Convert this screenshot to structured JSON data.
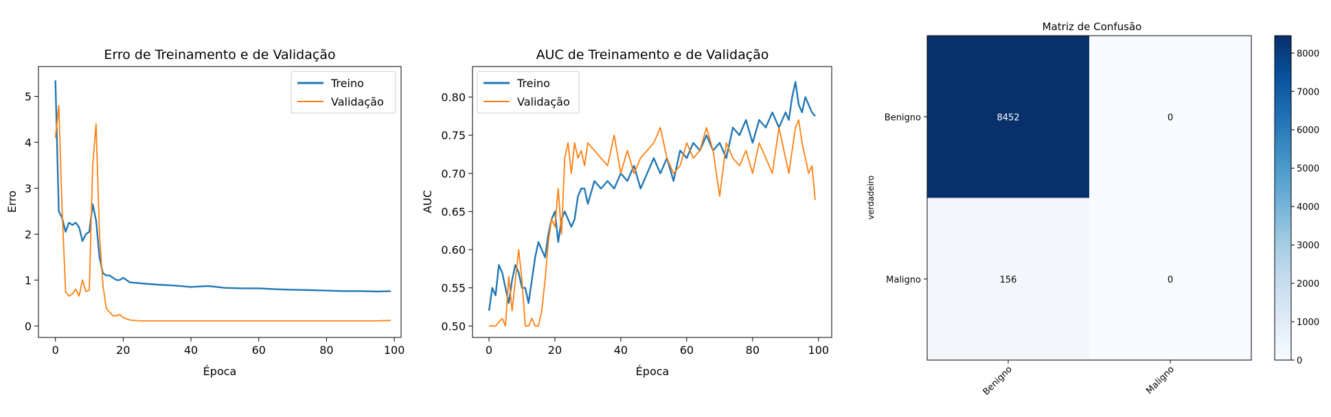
{
  "chart_data": [
    {
      "type": "line",
      "title": "Erro de Treinamento e de Validação",
      "xlabel": "Época",
      "ylabel": "Erro",
      "xlim": [
        -5,
        102
      ],
      "ylim": [
        -0.25,
        5.65
      ],
      "xticks": [
        0,
        20,
        40,
        60,
        80,
        100
      ],
      "yticks": [
        0,
        1,
        2,
        3,
        4,
        5
      ],
      "legend": "top-right",
      "series": [
        {
          "name": "Treino",
          "color": "#1f77b4",
          "x": [
            0,
            1,
            2,
            3,
            4,
            5,
            6,
            7,
            8,
            9,
            10,
            11,
            12,
            13,
            14,
            15,
            16,
            17,
            18,
            19,
            20,
            22,
            25,
            30,
            35,
            40,
            45,
            50,
            55,
            60,
            65,
            70,
            75,
            80,
            85,
            90,
            95,
            99
          ],
          "values": [
            5.35,
            2.5,
            2.35,
            2.05,
            2.25,
            2.2,
            2.25,
            2.15,
            1.85,
            2.0,
            2.05,
            2.65,
            2.3,
            1.5,
            1.15,
            1.1,
            1.1,
            1.05,
            1.0,
            1.0,
            1.05,
            0.95,
            0.93,
            0.9,
            0.88,
            0.85,
            0.87,
            0.83,
            0.82,
            0.82,
            0.8,
            0.79,
            0.78,
            0.77,
            0.76,
            0.76,
            0.75,
            0.76
          ]
        },
        {
          "name": "Validação",
          "color": "#ff7f0e",
          "x": [
            0,
            1,
            2,
            3,
            4,
            5,
            6,
            7,
            8,
            9,
            10,
            11,
            12,
            13,
            14,
            15,
            16,
            17,
            18,
            19,
            20,
            22,
            25,
            30,
            35,
            40,
            45,
            50,
            55,
            60,
            65,
            70,
            75,
            80,
            85,
            90,
            95,
            99
          ],
          "values": [
            4.1,
            4.8,
            2.5,
            0.75,
            0.65,
            0.7,
            0.8,
            0.65,
            1.0,
            0.75,
            0.78,
            3.5,
            4.4,
            2.0,
            0.9,
            0.38,
            0.3,
            0.22,
            0.22,
            0.25,
            0.18,
            0.13,
            0.11,
            0.11,
            0.11,
            0.11,
            0.11,
            0.11,
            0.11,
            0.11,
            0.11,
            0.11,
            0.11,
            0.11,
            0.11,
            0.11,
            0.11,
            0.12
          ]
        }
      ]
    },
    {
      "type": "line",
      "title": "AUC de Treinamento e de Validação",
      "xlabel": "Época",
      "ylabel": "AUC",
      "xlim": [
        -5,
        104
      ],
      "ylim": [
        0.485,
        0.84
      ],
      "xticks": [
        0,
        20,
        40,
        60,
        80,
        100
      ],
      "yticks": [
        0.5,
        0.55,
        0.6,
        0.65,
        0.7,
        0.75,
        0.8
      ],
      "yticklabels": [
        "0.50",
        "0.55",
        "0.60",
        "0.65",
        "0.70",
        "0.75",
        "0.80"
      ],
      "legend": "top-left",
      "series": [
        {
          "name": "Treino",
          "color": "#1f77b4",
          "x": [
            0,
            1,
            2,
            3,
            4,
            5,
            6,
            7,
            8,
            9,
            10,
            11,
            12,
            13,
            14,
            15,
            16,
            17,
            18,
            19,
            20,
            21,
            22,
            23,
            24,
            25,
            26,
            27,
            28,
            29,
            30,
            32,
            34,
            36,
            38,
            40,
            42,
            44,
            46,
            48,
            50,
            52,
            54,
            56,
            58,
            60,
            62,
            64,
            66,
            68,
            70,
            72,
            74,
            76,
            78,
            80,
            82,
            84,
            86,
            88,
            90,
            91,
            92,
            93,
            94,
            95,
            96,
            97,
            98,
            99
          ],
          "values": [
            0.52,
            0.55,
            0.54,
            0.58,
            0.57,
            0.55,
            0.53,
            0.56,
            0.58,
            0.57,
            0.55,
            0.55,
            0.53,
            0.56,
            0.59,
            0.61,
            0.6,
            0.59,
            0.62,
            0.64,
            0.65,
            0.61,
            0.64,
            0.65,
            0.64,
            0.63,
            0.64,
            0.67,
            0.68,
            0.68,
            0.66,
            0.69,
            0.68,
            0.69,
            0.68,
            0.7,
            0.69,
            0.71,
            0.68,
            0.7,
            0.72,
            0.7,
            0.72,
            0.69,
            0.73,
            0.72,
            0.74,
            0.73,
            0.75,
            0.73,
            0.74,
            0.72,
            0.76,
            0.75,
            0.77,
            0.74,
            0.77,
            0.76,
            0.78,
            0.76,
            0.78,
            0.77,
            0.8,
            0.82,
            0.79,
            0.78,
            0.8,
            0.79,
            0.78,
            0.775
          ]
        },
        {
          "name": "Validação",
          "color": "#ff7f0e",
          "x": [
            0,
            1,
            2,
            3,
            4,
            5,
            6,
            7,
            8,
            9,
            10,
            11,
            12,
            13,
            14,
            15,
            16,
            17,
            18,
            19,
            20,
            21,
            22,
            23,
            24,
            25,
            26,
            27,
            28,
            29,
            30,
            32,
            34,
            36,
            38,
            40,
            42,
            44,
            46,
            48,
            50,
            52,
            54,
            56,
            58,
            60,
            62,
            64,
            66,
            68,
            70,
            72,
            74,
            76,
            78,
            80,
            82,
            84,
            86,
            88,
            90,
            91,
            92,
            93,
            94,
            95,
            96,
            97,
            98,
            99
          ],
          "values": [
            0.5,
            0.5,
            0.5,
            0.505,
            0.51,
            0.5,
            0.565,
            0.52,
            0.56,
            0.6,
            0.56,
            0.5,
            0.5,
            0.51,
            0.5,
            0.5,
            0.52,
            0.56,
            0.61,
            0.64,
            0.63,
            0.68,
            0.62,
            0.72,
            0.74,
            0.7,
            0.74,
            0.72,
            0.73,
            0.71,
            0.74,
            0.73,
            0.72,
            0.71,
            0.75,
            0.7,
            0.73,
            0.7,
            0.72,
            0.73,
            0.74,
            0.76,
            0.72,
            0.7,
            0.71,
            0.74,
            0.72,
            0.73,
            0.76,
            0.73,
            0.67,
            0.74,
            0.72,
            0.71,
            0.73,
            0.7,
            0.74,
            0.72,
            0.7,
            0.76,
            0.72,
            0.7,
            0.73,
            0.76,
            0.77,
            0.74,
            0.72,
            0.7,
            0.71,
            0.665
          ]
        }
      ]
    },
    {
      "type": "heatmap",
      "title": "Matriz de Confusão",
      "ylabel": "verdadeiro",
      "xlabel": "",
      "x_categories": [
        "Benigno",
        "Maligno"
      ],
      "y_categories": [
        "Benigno",
        "Maligno"
      ],
      "matrix": [
        [
          8452,
          0
        ],
        [
          156,
          0
        ]
      ],
      "colormap": "Blues",
      "low_color": "#f7fbff",
      "high_color": "#08306b",
      "colorbar_ticks": [
        0,
        1000,
        2000,
        3000,
        4000,
        5000,
        6000,
        7000,
        8000
      ],
      "colorbar_max": 8452
    }
  ]
}
